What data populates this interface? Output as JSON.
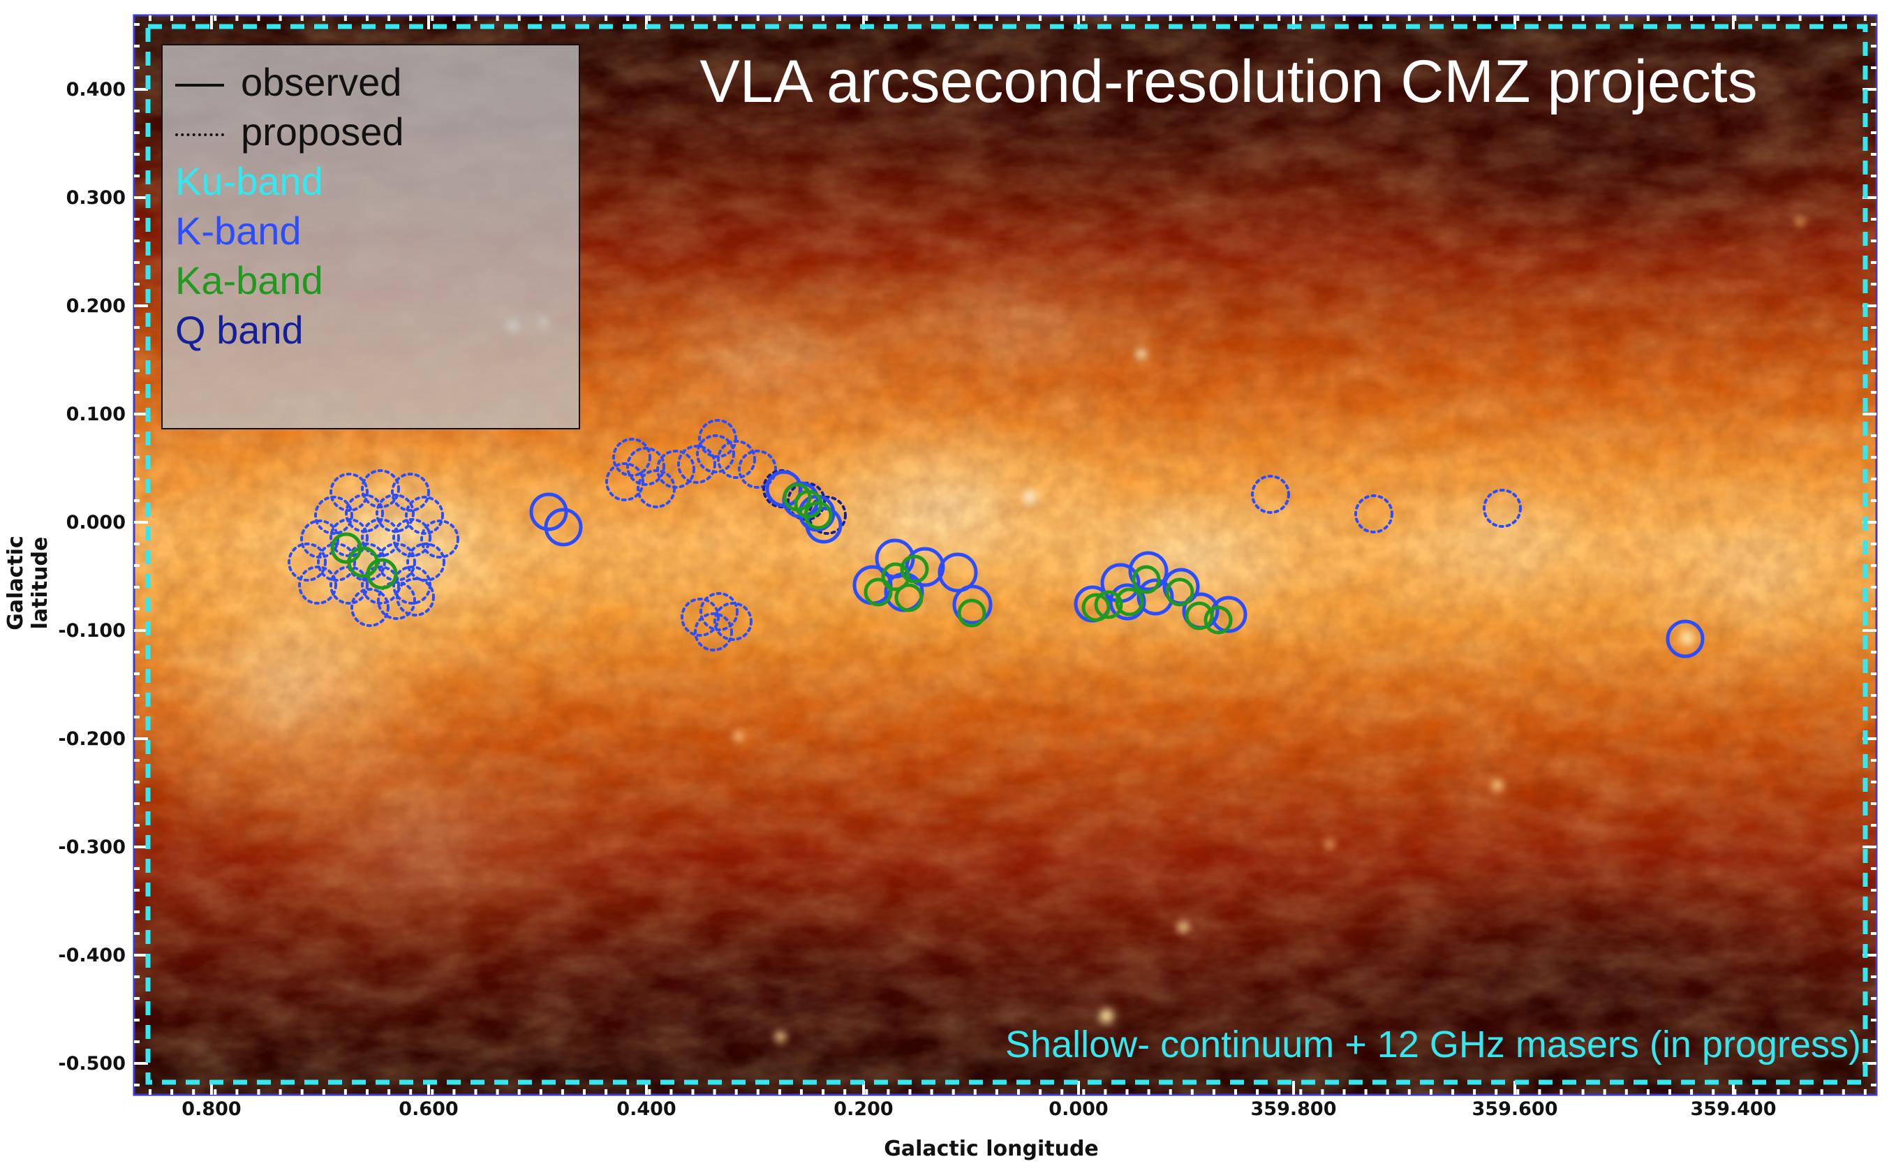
{
  "title": "VLA arcsecond-resolution CMZ projects",
  "note": "Shallow- continuum + 12 GHz masers (in progress)",
  "axes": {
    "xlabel": "Galactic longitude",
    "ylabel": "Galactic latitude",
    "xticks": [
      "0.800",
      "0.600",
      "0.400",
      "0.200",
      "0.000",
      "359.800",
      "359.600",
      "359.400"
    ],
    "yticks": [
      "0.400",
      "0.300",
      "0.200",
      "0.100",
      "0.000",
      "-0.100",
      "-0.200",
      "-0.300",
      "-0.400",
      "-0.500"
    ]
  },
  "legend": {
    "observed": "observed",
    "proposed": "proposed",
    "bands": [
      {
        "label": "Ku-band",
        "color": "#33e8f0"
      },
      {
        "label": "K-band",
        "color": "#2a4dff"
      },
      {
        "label": "Ka-band",
        "color": "#1f9a1f"
      },
      {
        "label": "Q band",
        "color": "#14209a"
      }
    ]
  },
  "colors": {
    "ku": "#33e8f0",
    "k": "#2a4dff",
    "ka": "#1f9a1f",
    "q": "#14209a"
  }
}
